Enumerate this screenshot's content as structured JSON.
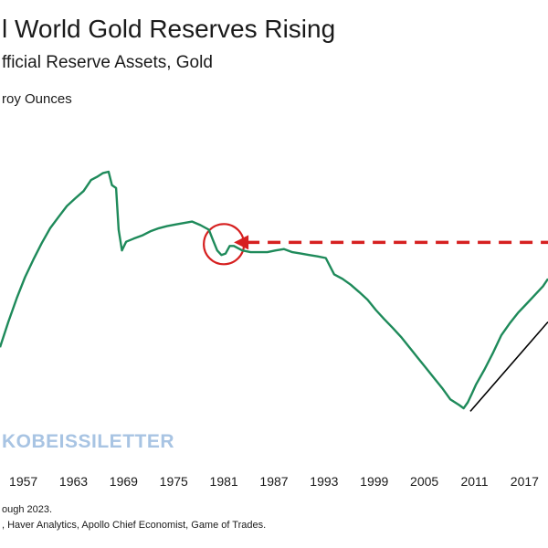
{
  "chart_data": {
    "type": "line",
    "title": "l World Gold Reserves Rising",
    "subtitle": "fficial Reserve Assets, Gold",
    "ylabel": "roy Ounces",
    "x_tick_labels": [
      "1957",
      "1963",
      "1969",
      "1975",
      "1981",
      "1987",
      "1993",
      "1999",
      "2005",
      "2011",
      "2017"
    ],
    "xlim": [
      1954.2,
      2019.8
    ],
    "y_axis_shown": false,
    "y_scale_note": "no y-axis values printed; y values are relative heights (0 = lowest, 100 = peak)",
    "grid": false,
    "series": [
      {
        "color": "#1e8a5a",
        "x": [
          1954.2,
          1955.2,
          1956.2,
          1957.2,
          1958.2,
          1959.2,
          1960.2,
          1961.2,
          1962.2,
          1963.2,
          1964.2,
          1965.1,
          1965.8,
          1966.5,
          1967.2,
          1967.6,
          1968.1,
          1968.4,
          1968.8,
          1969.3,
          1970.2,
          1971.2,
          1972.2,
          1973.2,
          1974.2,
          1975.2,
          1976.2,
          1977.2,
          1978.2,
          1979.2,
          1979.7,
          1980.2,
          1980.7,
          1981.2,
          1981.7,
          1982.2,
          1983.2,
          1984.2,
          1985.2,
          1986.2,
          1987.2,
          1988.2,
          1989.2,
          1990.2,
          1991.2,
          1992.2,
          1993.2,
          1994.2,
          1995.2,
          1996.2,
          1997.2,
          1998.2,
          1999.2,
          2000.2,
          2001.2,
          2002.2,
          2003.2,
          2004.2,
          2005.2,
          2006.2,
          2007.2,
          2008.1,
          2009.2,
          2009.7,
          2010.2,
          2010.7,
          2011.2,
          2012.2,
          2013.2,
          2014.2,
          2015.2,
          2016.2,
          2017.2,
          2018.2,
          2019.2,
          2019.8
        ],
        "y": [
          25.8,
          36.5,
          46.5,
          55.4,
          62.9,
          69.8,
          76.1,
          80.8,
          85.5,
          88.7,
          91.8,
          96.5,
          97.8,
          99.4,
          100,
          94.3,
          93.1,
          75.5,
          66.7,
          70.4,
          71.7,
          73.0,
          74.8,
          76.1,
          77.0,
          77.7,
          78.3,
          78.9,
          77.4,
          75.5,
          71.1,
          66.7,
          64.8,
          65.4,
          68.6,
          68.6,
          66.7,
          66.0,
          66.0,
          66.0,
          66.7,
          67.3,
          66.0,
          65.4,
          64.8,
          64.2,
          63.5,
          56.6,
          54.7,
          52.2,
          49.1,
          45.9,
          41.5,
          37.7,
          34.0,
          30.2,
          25.8,
          21.4,
          17.0,
          12.6,
          8.2,
          3.8,
          1.3,
          0,
          2.5,
          6.3,
          10.1,
          16.4,
          23.3,
          30.8,
          35.8,
          40.3,
          44.0,
          47.8,
          51.6,
          54.7
        ]
      }
    ],
    "annotations": [
      {
        "type": "circle",
        "color": "#d62020",
        "at_x": 1981.0,
        "at_y": 68.6
      },
      {
        "type": "dashed-arrow",
        "color": "#d62020",
        "direction": "left",
        "level_y": 68.6
      },
      {
        "type": "trend-line",
        "color": "#000000",
        "x": [
          2010.5,
          2019.8
        ],
        "y": [
          -1.3,
          36.5
        ]
      }
    ]
  },
  "brand": {
    "watermark": "KOBEISSILETTER",
    "watermark_color": "#a8c4e3"
  },
  "footnotes": {
    "line1": "ough 2023.",
    "line2": ", Haver Analytics, Apollo Chief Economist, Game of Trades."
  }
}
